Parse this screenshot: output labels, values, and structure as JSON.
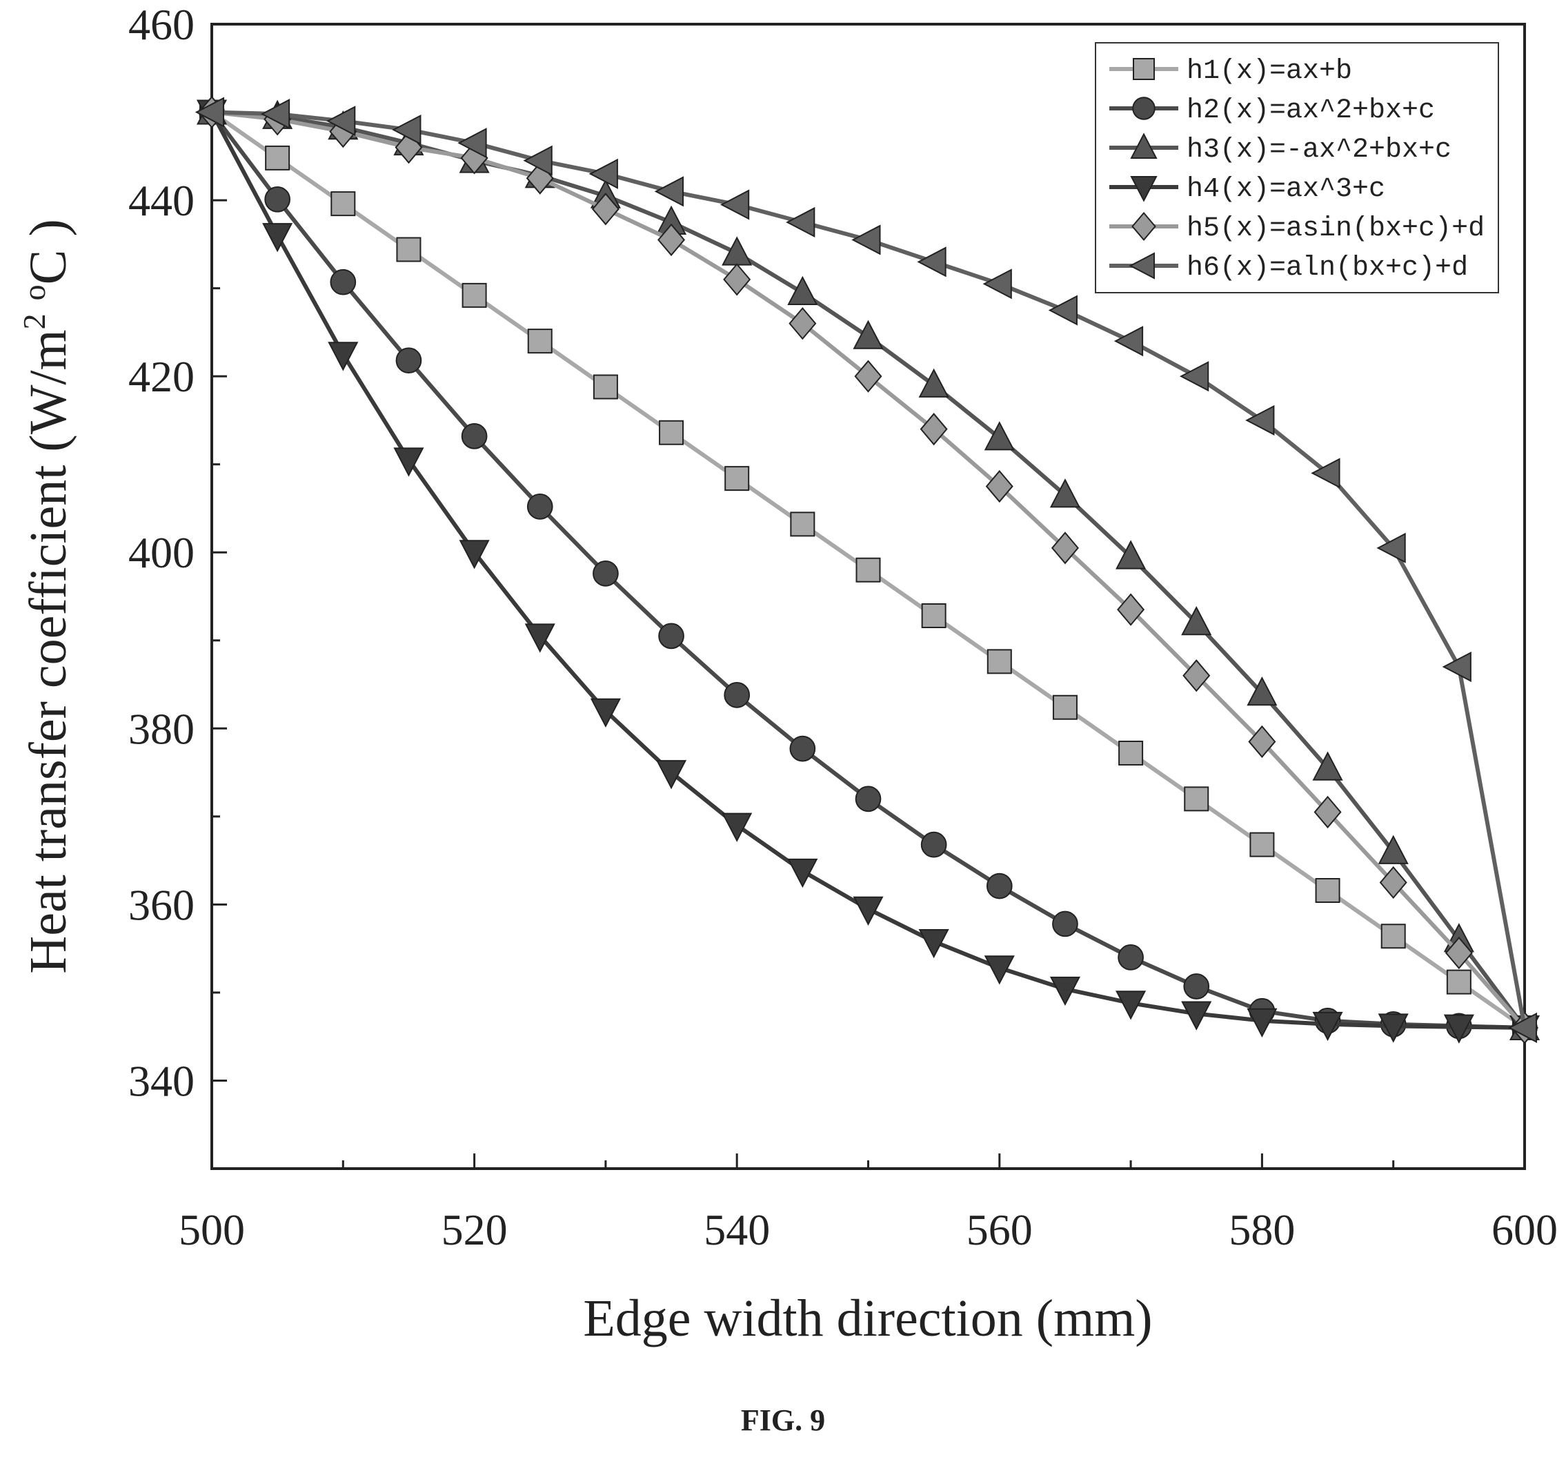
{
  "chart_data": {
    "type": "line",
    "title": "",
    "xlabel": "Edge width direction (mm)",
    "ylabel_main": "Heat transfer coefficient (W/m",
    "ylabel_sup1": "2",
    "ylabel_mid": " ",
    "ylabel_sup2": "o",
    "ylabel_end": "C )",
    "xlim": [
      500,
      600
    ],
    "ylim": [
      330,
      460
    ],
    "xticks": [
      500,
      520,
      540,
      560,
      580,
      600
    ],
    "yticks": [
      340,
      360,
      380,
      400,
      420,
      440,
      460
    ],
    "grid": false,
    "legend_position": "top-right",
    "x": [
      500,
      505,
      510,
      515,
      520,
      525,
      530,
      535,
      540,
      545,
      550,
      555,
      560,
      565,
      570,
      575,
      580,
      585,
      590,
      595,
      600
    ],
    "series": [
      {
        "name": "h1(x)=ax+b",
        "marker": "square",
        "color": "#a8a8a8",
        "values": [
          450,
          444.8,
          439.6,
          434.4,
          429.2,
          424,
          418.8,
          413.6,
          408.4,
          403.2,
          398,
          392.8,
          387.6,
          382.4,
          377.2,
          372,
          366.8,
          361.6,
          356.4,
          351.2,
          346
        ]
      },
      {
        "name": "h2(x)=ax^2+bx+c",
        "marker": "circle",
        "color": "#4a4a4a",
        "values": [
          450,
          440.1,
          430.7,
          421.8,
          413.2,
          405.2,
          397.6,
          390.5,
          383.8,
          377.7,
          372,
          366.8,
          362.1,
          357.8,
          354,
          350.7,
          347.9,
          346.8,
          346.4,
          346.2,
          346
        ]
      },
      {
        "name": "h3(x)=-ax^2+bx+c",
        "marker": "triangle-up",
        "color": "#555555",
        "values": [
          450,
          449.5,
          448.3,
          446.5,
          444.5,
          442.8,
          440.5,
          437.5,
          434,
          429.5,
          424.5,
          419,
          413,
          406.5,
          399.5,
          392,
          384,
          375.5,
          366,
          356,
          346
        ]
      },
      {
        "name": "h4(x)=ax^3+c",
        "marker": "triangle-down",
        "color": "#3a3a3a",
        "values": [
          450,
          436,
          422.5,
          410.5,
          400,
          390.5,
          382,
          375,
          369,
          363.8,
          359.5,
          355.8,
          352.8,
          350.4,
          348.8,
          347.6,
          346.8,
          346.4,
          346.2,
          346.1,
          346
        ]
      },
      {
        "name": "h5(x)=asin(bx+c)+d",
        "marker": "diamond",
        "color": "#9a9a9a",
        "values": [
          450,
          449.2,
          447.8,
          446,
          444.8,
          442.5,
          439,
          435.5,
          431,
          426,
          420,
          414,
          407.5,
          400.5,
          393.5,
          386,
          378.5,
          370.5,
          362.5,
          354.5,
          346
        ]
      },
      {
        "name": "h6(x)=aln(bx+c)+d",
        "marker": "triangle-left",
        "color": "#606060",
        "values": [
          450,
          449.8,
          449,
          448,
          446.5,
          444.5,
          443,
          441,
          439.5,
          437.5,
          435.5,
          433,
          430.5,
          427.5,
          424,
          420,
          415,
          409,
          400.5,
          387,
          346
        ]
      }
    ]
  },
  "caption": "FIG. 9"
}
